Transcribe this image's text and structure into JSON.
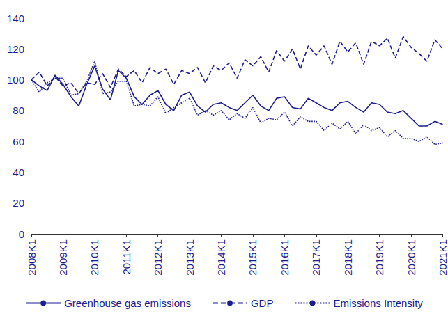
{
  "chart_data": {
    "type": "line",
    "categories": [
      "2008K1",
      null,
      null,
      null,
      "2009K1",
      null,
      null,
      null,
      "2010K1",
      null,
      null,
      null,
      "2011K1",
      null,
      null,
      null,
      "2012K1",
      null,
      null,
      null,
      "2013K1",
      null,
      null,
      null,
      "2014K1",
      null,
      null,
      null,
      "2015K1",
      null,
      null,
      null,
      "2016K1",
      null,
      null,
      null,
      "2017K1",
      null,
      null,
      null,
      "2018K1",
      null,
      null,
      null,
      "2019K1",
      null,
      null,
      null,
      "2020K1",
      null,
      null,
      null,
      "2021K1"
    ],
    "series": [
      {
        "name": "Greenhouse gas emissions",
        "color": "#1c1c8f",
        "line_style": "solid",
        "values": [
          100,
          96,
          93,
          103,
          97,
          89,
          83,
          97,
          109,
          94,
          87,
          106,
          101,
          89,
          84,
          90,
          93,
          84,
          80,
          90,
          92,
          83,
          79,
          84,
          85,
          82,
          80,
          85,
          90,
          83,
          80,
          88,
          89,
          82,
          81,
          88,
          85,
          82,
          80,
          85,
          86,
          82,
          79,
          85,
          84,
          79,
          78,
          80,
          75,
          70,
          70,
          73,
          71
        ]
      },
      {
        "name": "GDP",
        "color": "#1c1c8f",
        "line_style": "dashed",
        "values": [
          100,
          105,
          96,
          102,
          96,
          98,
          91,
          98,
          97,
          104,
          95,
          107,
          102,
          106,
          98,
          108,
          104,
          107,
          97,
          106,
          104,
          108,
          98,
          109,
          106,
          111,
          101,
          113,
          109,
          115,
          105,
          119,
          112,
          120,
          107,
          122,
          116,
          122,
          110,
          125,
          118,
          124,
          110,
          125,
          122,
          127,
          114,
          128,
          121,
          117,
          112,
          126,
          120
        ]
      },
      {
        "name": "Emissions Intensity",
        "color": "#1c1c8f",
        "line_style": "dotted",
        "values": [
          100,
          92,
          98,
          101,
          101,
          90,
          91,
          99,
          112,
          91,
          92,
          99,
          99,
          83,
          84,
          83,
          89,
          78,
          82,
          85,
          88,
          77,
          80,
          77,
          80,
          74,
          78,
          75,
          82,
          72,
          75,
          74,
          79,
          70,
          76,
          73,
          73,
          67,
          72,
          68,
          73,
          65,
          71,
          67,
          69,
          63,
          67,
          62,
          62,
          60,
          63,
          58,
          59
        ]
      }
    ],
    "ylim": [
      0,
      140
    ],
    "yticks": [
      0,
      20,
      40,
      60,
      80,
      100,
      120,
      140
    ],
    "grid": false,
    "legend": "bottom"
  }
}
